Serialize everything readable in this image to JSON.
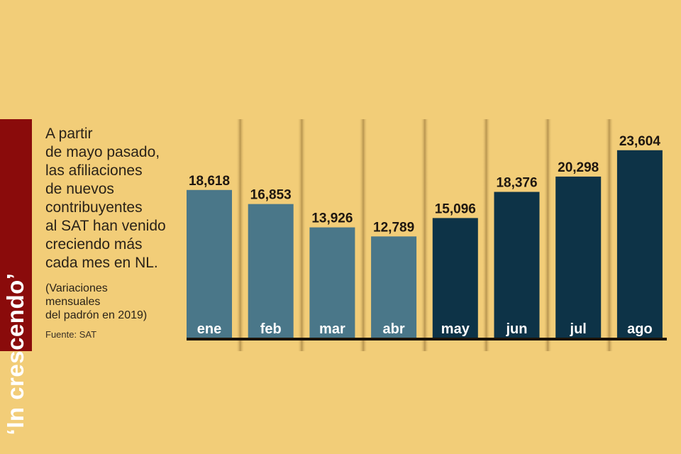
{
  "title": "‘In crescendo’",
  "description": "A partir de mayo pasado, las afiliaciones de nuevos contribuyentes al SAT han venido creciendo más cada mes en NL.",
  "description_lines": [
    "A partir",
    "de mayo pasado,",
    "las afiliaciones",
    "de nuevos",
    "contribuyentes",
    "al SAT han venido",
    "creciendo más",
    "cada mes en NL."
  ],
  "note_lines": [
    "(Variaciones",
    "mensuales",
    "del padrón en 2019)"
  ],
  "source": "Fuente: SAT",
  "colors": {
    "background": "#F2CD78",
    "title_box": "#8A0B0B",
    "bar_earlier": "#4A7789",
    "bar_recent": "#0D3347",
    "baseline": "#1a1208"
  },
  "chart_data": {
    "type": "bar",
    "title": "‘In crescendo’",
    "xlabel": "",
    "ylabel": "",
    "categories": [
      "ene",
      "feb",
      "mar",
      "abr",
      "may",
      "jun",
      "jul",
      "ago"
    ],
    "values": [
      18618,
      16853,
      13926,
      12789,
      15096,
      18376,
      20298,
      23604
    ],
    "value_labels": [
      "18,618",
      "16,853",
      "13,926",
      "12,789",
      "15,096",
      "18,376",
      "20,298",
      "23,604"
    ],
    "highlight_from": "may",
    "ylim": [
      0,
      27500
    ],
    "grid": false,
    "legend": "none"
  }
}
